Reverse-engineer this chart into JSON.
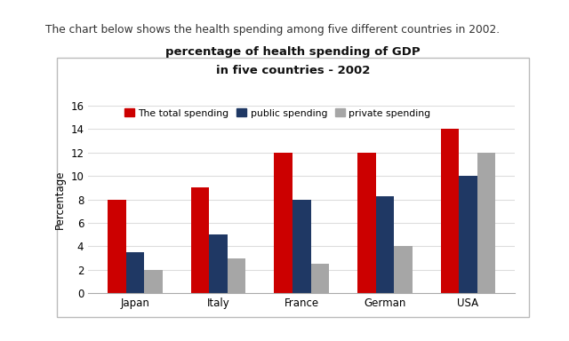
{
  "title_line1": "percentage of health spending of GDP",
  "title_line2": "in five countries - 2002",
  "categories": [
    "Japan",
    "Italy",
    "France",
    "German",
    "USA"
  ],
  "series": {
    "The total spending": [
      8,
      9,
      12,
      12,
      14
    ],
    "public spending": [
      3.5,
      5,
      8,
      8.3,
      10
    ],
    "private spending": [
      2,
      3,
      2.5,
      4,
      12
    ]
  },
  "colors": {
    "The total spending": "#cc0000",
    "public spending": "#1f3864",
    "private spending": "#a6a6a6"
  },
  "ylabel": "Percentage",
  "ylim": [
    0,
    16
  ],
  "yticks": [
    0,
    2,
    4,
    6,
    8,
    10,
    12,
    14,
    16
  ],
  "background_color": "#ffffff",
  "chart_bg": "#ffffff",
  "header_text": "The chart below shows the health spending among five different countries in 2002.",
  "bar_width": 0.22
}
